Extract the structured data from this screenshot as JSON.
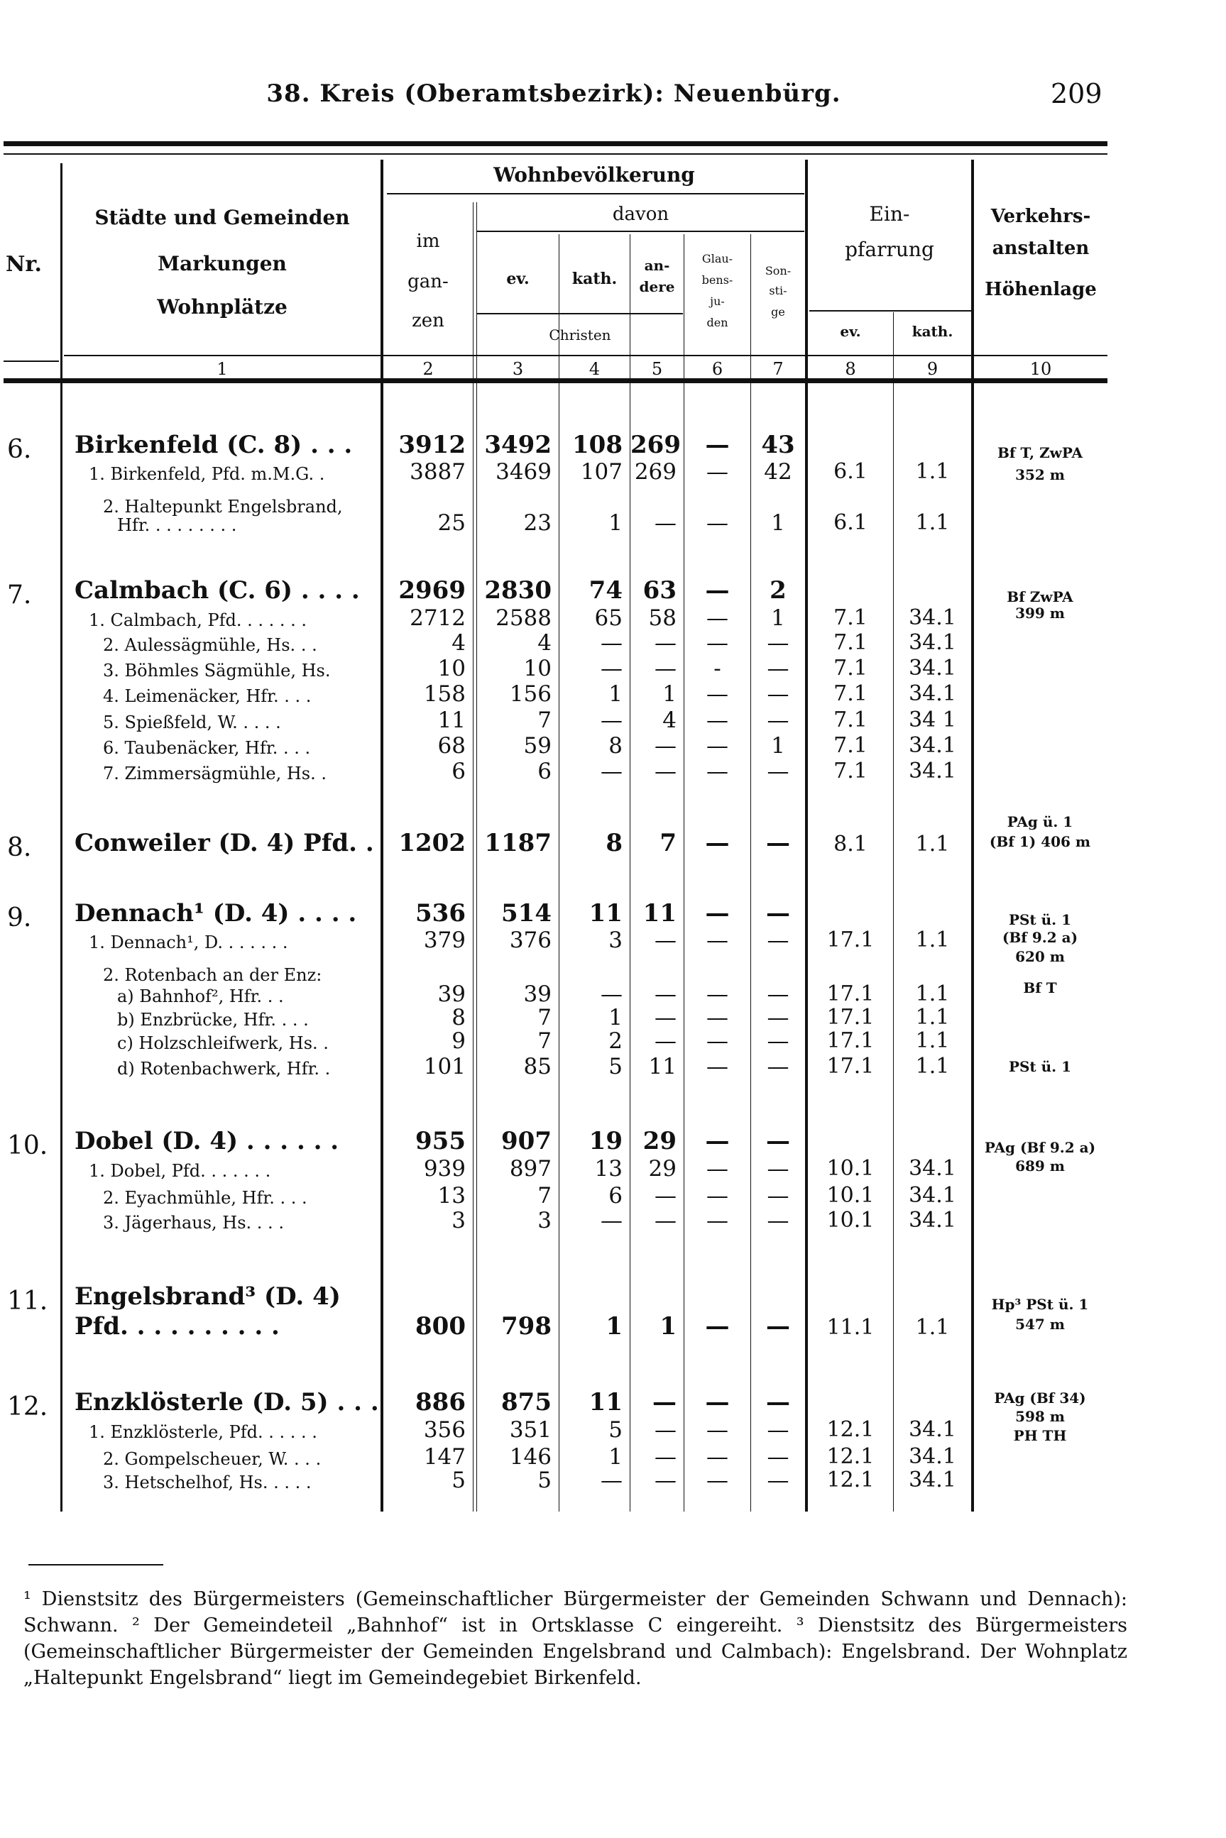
{
  "header": {
    "title": "38. Kreis (Oberamtsbezirk): Neuenbürg.",
    "page_number": "209"
  },
  "table_header": {
    "nr": "Nr.",
    "col1": [
      "Städte und Gemeinden",
      "Markungen",
      "Wohnplätze"
    ],
    "wohnbevoelkerung": "Wohnbevölkerung",
    "im_ganzen": [
      "im",
      "gan-",
      "zen"
    ],
    "davon": "davon",
    "ev": "ev.",
    "kath": "kath.",
    "andere": [
      "an-",
      "dere"
    ],
    "christen": "Christen",
    "glaubensjuden": [
      "Glau-",
      "bens-",
      "ju-",
      "den"
    ],
    "sonstige": [
      "Son-",
      "sti-",
      "ge"
    ],
    "einpfarrung": [
      "Ein-",
      "pfarrung"
    ],
    "ein_ev": "ev.",
    "ein_kath": "kath.",
    "verkehr": [
      "Verkehrs-",
      "anstalten",
      "Höhenlage"
    ],
    "col_numbers": [
      "1",
      "2",
      "3",
      "4",
      "5",
      "6",
      "7",
      "8",
      "9",
      "10"
    ]
  },
  "rows": [
    {
      "type": "main",
      "nr": "6.",
      "name": "Birkenfeld (C. 8) . . .",
      "values": [
        "3912",
        "3492",
        "108",
        "269",
        "—",
        "43"
      ],
      "ev": "",
      "kath": ""
    },
    {
      "type": "sub",
      "indent": 1,
      "name": "1. Birkenfeld, Pfd. m.M.G. .",
      "values": [
        "3887",
        "3469",
        "107",
        "269",
        "—",
        "42"
      ],
      "ev": "6.1",
      "kath": "1.1"
    },
    {
      "type": "sub",
      "indent": 2,
      "name": "2. Haltepunkt Engelsbrand,",
      "values": [
        "",
        "",
        "",
        "",
        "",
        ""
      ],
      "ev": "",
      "kath": ""
    },
    {
      "type": "sub",
      "indent": 3,
      "name": "Hfr. . . . . . . . .",
      "values": [
        "25",
        "23",
        "1",
        "—",
        "—",
        "1"
      ],
      "ev": "6.1",
      "kath": "1.1"
    },
    {
      "type": "main",
      "nr": "7.",
      "name": "Calmbach (C. 6) . . . .",
      "values": [
        "2969",
        "2830",
        "74",
        "63",
        "—",
        "2"
      ],
      "ev": "",
      "kath": ""
    },
    {
      "type": "sub",
      "indent": 1,
      "name": "1. Calmbach, Pfd. . . . . . .",
      "values": [
        "2712",
        "2588",
        "65",
        "58",
        "—",
        "1"
      ],
      "ev": "7.1",
      "kath": "34.1"
    },
    {
      "type": "sub",
      "indent": 2,
      "name": "2. Aulessägmühle, Hs. . .",
      "values": [
        "4",
        "4",
        "—",
        "—",
        "—",
        "—"
      ],
      "ev": "7.1",
      "kath": "34.1"
    },
    {
      "type": "sub",
      "indent": 2,
      "name": "3. Böhmles Sägmühle, Hs.",
      "values": [
        "10",
        "10",
        "—",
        "—",
        "-",
        "—"
      ],
      "ev": "7.1",
      "kath": "34.1"
    },
    {
      "type": "sub",
      "indent": 2,
      "name": "4. Leimenäcker, Hfr. . . .",
      "values": [
        "158",
        "156",
        "1",
        "1",
        "—",
        "—"
      ],
      "ev": "7.1",
      "kath": "34.1"
    },
    {
      "type": "sub",
      "indent": 2,
      "name": "5. Spießfeld, W. . . . .",
      "values": [
        "11",
        "7",
        "—",
        "4",
        "—",
        "—"
      ],
      "ev": "7.1",
      "kath": "34 1"
    },
    {
      "type": "sub",
      "indent": 2,
      "name": "6. Taubenäcker, Hfr. . . .",
      "values": [
        "68",
        "59",
        "8",
        "—",
        "—",
        "1"
      ],
      "ev": "7.1",
      "kath": "34.1"
    },
    {
      "type": "sub",
      "indent": 2,
      "name": "7. Zimmersägmühle, Hs. .",
      "values": [
        "6",
        "6",
        "—",
        "—",
        "—",
        "—"
      ],
      "ev": "7.1",
      "kath": "34.1"
    },
    {
      "type": "main",
      "nr": "8.",
      "name": "Conweiler (D. 4) Pfd. .",
      "values": [
        "1202",
        "1187",
        "8",
        "7",
        "—",
        "—"
      ],
      "ev": "8.1",
      "kath": "1.1"
    },
    {
      "type": "main",
      "nr": "9.",
      "name": "Dennach¹ (D. 4) . . . .",
      "values": [
        "536",
        "514",
        "11",
        "11",
        "—",
        "—"
      ],
      "ev": "",
      "kath": ""
    },
    {
      "type": "sub",
      "indent": 1,
      "name": "1. Dennach¹, D. . . . . . .",
      "values": [
        "379",
        "376",
        "3",
        "—",
        "—",
        "—"
      ],
      "ev": "17.1",
      "kath": "1.1"
    },
    {
      "type": "sub",
      "indent": 2,
      "name": "2. Rotenbach an der Enz:",
      "values": [
        "",
        "",
        "",
        "",
        "",
        ""
      ],
      "ev": "",
      "kath": ""
    },
    {
      "type": "sub",
      "indent": 3,
      "name": "a) Bahnhof², Hfr. . .",
      "values": [
        "39",
        "39",
        "—",
        "—",
        "—",
        "—"
      ],
      "ev": "17.1",
      "kath": "1.1"
    },
    {
      "type": "sub",
      "indent": 3,
      "name": "b) Enzbrücke, Hfr. . . .",
      "values": [
        "8",
        "7",
        "1",
        "—",
        "—",
        "—"
      ],
      "ev": "17.1",
      "kath": "1.1"
    },
    {
      "type": "sub",
      "indent": 3,
      "name": "c) Holzschleifwerk, Hs. .",
      "values": [
        "9",
        "7",
        "2",
        "—",
        "—",
        "—"
      ],
      "ev": "17.1",
      "kath": "1.1"
    },
    {
      "type": "sub",
      "indent": 3,
      "name": "d) Rotenbachwerk, Hfr. .",
      "values": [
        "101",
        "85",
        "5",
        "11",
        "—",
        "—"
      ],
      "ev": "17.1",
      "kath": "1.1"
    },
    {
      "type": "main",
      "nr": "10.",
      "name": "Dobel (D. 4) . . . . . .",
      "values": [
        "955",
        "907",
        "19",
        "29",
        "—",
        "—"
      ],
      "ev": "",
      "kath": ""
    },
    {
      "type": "sub",
      "indent": 1,
      "name": "1. Dobel, Pfd. . . . . . .",
      "values": [
        "939",
        "897",
        "13",
        "29",
        "—",
        "—"
      ],
      "ev": "10.1",
      "kath": "34.1"
    },
    {
      "type": "sub",
      "indent": 2,
      "name": "2. Eyachmühle, Hfr. . . .",
      "values": [
        "13",
        "7",
        "6",
        "—",
        "—",
        "—"
      ],
      "ev": "10.1",
      "kath": "34.1"
    },
    {
      "type": "sub",
      "indent": 2,
      "name": "3. Jägerhaus, Hs. . . .",
      "values": [
        "3",
        "3",
        "—",
        "—",
        "—",
        "—"
      ],
      "ev": "10.1",
      "kath": "34.1"
    },
    {
      "type": "main",
      "nr": "11.",
      "name": "Engelsbrand³ (D. 4)",
      "values": [
        "",
        "",
        "",
        "",
        "",
        ""
      ],
      "ev": "",
      "kath": ""
    },
    {
      "type": "main",
      "indent": 0,
      "name": "Pfd. . . . . . . . . .",
      "values": [
        "800",
        "798",
        "1",
        "1",
        "—",
        "—"
      ],
      "ev": "11.1",
      "kath": "1.1"
    },
    {
      "type": "main",
      "nr": "12.",
      "name": "Enzklösterle (D. 5) . . .",
      "values": [
        "886",
        "875",
        "11",
        "—",
        "—",
        "—"
      ],
      "ev": "",
      "kath": ""
    },
    {
      "type": "sub",
      "indent": 1,
      "name": "1. Enzklösterle, Pfd. . . . . .",
      "values": [
        "356",
        "351",
        "5",
        "—",
        "—",
        "—"
      ],
      "ev": "12.1",
      "kath": "34.1"
    },
    {
      "type": "sub",
      "indent": 2,
      "name": "2. Gompelscheuer, W. . . .",
      "values": [
        "147",
        "146",
        "1",
        "—",
        "—",
        "—"
      ],
      "ev": "12.1",
      "kath": "34.1"
    },
    {
      "type": "sub",
      "indent": 2,
      "name": "3. Hetschelhof, Hs. . . . .",
      "values": [
        "5",
        "5",
        "—",
        "—",
        "—",
        "—"
      ],
      "ev": "12.1",
      "kath": "34.1"
    }
  ],
  "verkehr": [
    "Bf T, ZwPA",
    "352 m",
    "Bf ZwPA",
    "399 m",
    "PAg ü. 1",
    "(Bf 1) 406 m",
    "PSt ü. 1",
    "(Bf 9.2 a)",
    "620 m",
    "Bf T",
    "PSt ü. 1",
    "PAg (Bf 9.2 a)",
    "689 m",
    "Hp³ PSt ü. 1",
    "547 m",
    "PAg (Bf 34)",
    "598 m",
    "PH TH"
  ],
  "footnotes": {
    "n1": "¹ Dienstsitz des Bürgermeisters (Gemeinschaftlicher Bürgermeister der Gemeinden Schwann und Dennach): Schwann.",
    "n2": "² Der Gemeindeteil „Bahnhof“ ist in Ortsklasse C eingereiht.",
    "n3": "³ Dienstsitz des Bürgermeisters (Gemeinschaftlicher Bürgermeister der Gemeinden Engelsbrand und Calmbach): Engelsbrand. Der Wohnplatz „Haltepunkt Engelsbrand“ liegt im Gemeindegebiet Birkenfeld."
  }
}
